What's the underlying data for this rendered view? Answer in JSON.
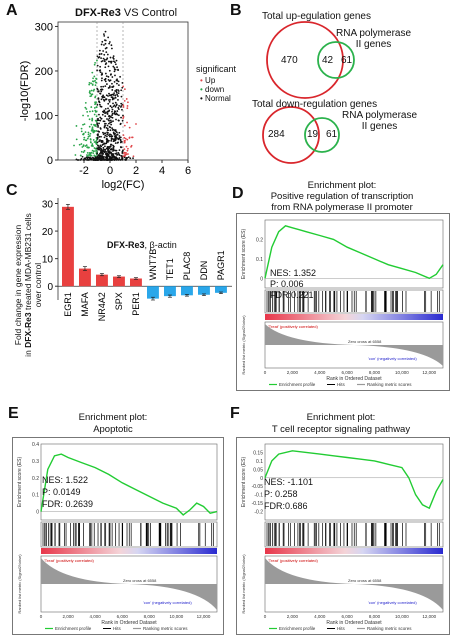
{
  "panel_letters": [
    "A",
    "B",
    "C",
    "D",
    "E",
    "F"
  ],
  "panel_a": {
    "title_bold": "DFX-Re3",
    "title_rest": " VS Control",
    "ylabel": "-log10(FDR)",
    "xlabel": "log2(FC)",
    "legend_title": "significant",
    "legend_items": [
      {
        "label": "Up",
        "color": "#e0464a"
      },
      {
        "label": "down",
        "color": "#29a44a"
      },
      {
        "label": "Normal",
        "color": "#111111"
      }
    ]
  },
  "panel_b": {
    "up_title": "Total up-egulation genes",
    "up_rna_label_1": "RNA polymerase",
    "up_rna_label_2": "II genes",
    "up_left": "470",
    "up_mid": "42",
    "up_right": "61",
    "down_title": "Total down-regulation genes",
    "down_rna_label_1": "RNA polymerase",
    "down_rna_label_2": "II genes",
    "down_left": "284",
    "down_mid": "19",
    "down_right": "61"
  },
  "panel_c": {
    "ylabel_1": "Fold change in gene expression",
    "ylabel_2_bold": "DFX-Re3",
    "ylabel_2_pre": "in ",
    "ylabel_2_post": " treated MDA-MB231 cells",
    "ylabel_3": "over control",
    "annot_bold": "DFX-Re3",
    "annot_rest": ", β-actin",
    "up_color": "#e8403f",
    "down_color": "#2aa7ea"
  },
  "gsea_common": {
    "ylabel_es": "Enrichment score (ES)",
    "ylabel_rank": "Ranked list metric (Signal2Noise)",
    "xlabel": "Rank in Ordered Dataset",
    "pos_label": "'Treat' (positively correlated)",
    "neg_label": "'con' (negatively correlated)",
    "zero_cross": "Zero cross at 6558",
    "legend_profile": "Enrichment profile",
    "legend_hits": "Hits",
    "legend_ranking": "Ranking metric scores"
  },
  "panel_d": {
    "heading": "Enrichment plot:",
    "title_1": "Positive regulation of transcription",
    "title_2": "from RNA polymerase II promoter",
    "nes": "NES: 1.352",
    "p": "P: 0.006",
    "fdr": "FDR:0.221"
  },
  "panel_e": {
    "heading": "Enrichment plot:",
    "title_1": "Apoptotic",
    "nes": "NES: 1.522",
    "p": "P: 0.0149",
    "fdr": "FDR: 0.2639"
  },
  "panel_f": {
    "heading": "Enrichment plot:",
    "title_1": "T cell receptor signaling pathway",
    "nes": "NES: -1.101",
    "p": "P: 0.258",
    "fdr": "FDR:0.686"
  },
  "chart_data": [
    {
      "type": "scatter",
      "title": "DFX-Re3 VS Control",
      "xlabel": "log2(FC)",
      "ylabel": "-log10(FDR)",
      "xlim": [
        -4,
        6
      ],
      "ylim": [
        0,
        310
      ],
      "xticks": [
        -2,
        0,
        2,
        4,
        6
      ],
      "yticks": [
        0,
        100,
        200,
        300
      ],
      "thresholds_x": [
        -1,
        1
      ],
      "series": [
        {
          "name": "Up",
          "color": "#e0464a"
        },
        {
          "name": "down",
          "color": "#29a44a"
        },
        {
          "name": "Normal",
          "color": "#111111"
        }
      ],
      "shape": {
        "x_center": -0.3,
        "x_spread": 2.0,
        "y_max": 300
      }
    },
    {
      "type": "bar",
      "title": "",
      "annotation": "DFX-Re3, β-actin",
      "ylabel": "Fold change in gene expression in DFX-Re3 treated MDA-MB231 cells over control",
      "ylim": [
        -5,
        32
      ],
      "yticks": [
        0,
        10,
        20,
        30
      ],
      "categories": [
        "EGR1",
        "MAFA",
        "NR4A2",
        "SPX",
        "PER1",
        "WNT7B",
        "TET1",
        "PLAC8",
        "DDN",
        "PAGR1"
      ],
      "values": [
        28.8,
        6.4,
        4.2,
        3.5,
        2.8,
        -4.5,
        -3.6,
        -3.3,
        -3.1,
        -2.4
      ],
      "errors": [
        0.9,
        0.7,
        0.4,
        0.3,
        0.3,
        0.5,
        0.4,
        0.3,
        0.3,
        0.3
      ]
    },
    {
      "type": "line",
      "title": "Positive regulation of transcription from RNA polymerase II promoter",
      "xlabel": "Rank in Ordered Dataset",
      "ylabel": "Enrichment score (ES)",
      "xlim": [
        0,
        13000
      ],
      "ylim": [
        -0.05,
        0.3
      ],
      "yticks": [
        0.0,
        0.1,
        0.2
      ],
      "xticks": [
        0,
        2000,
        4000,
        6000,
        8000,
        10000,
        12000
      ],
      "x": [
        0,
        500,
        1000,
        1500,
        2000,
        2500,
        3000,
        4000,
        5000,
        6000,
        7000,
        8000,
        9000,
        10000,
        11000,
        12000,
        12500,
        13000
      ],
      "y": [
        0.0,
        0.16,
        0.24,
        0.27,
        0.26,
        0.25,
        0.24,
        0.22,
        0.2,
        0.16,
        0.13,
        0.1,
        0.07,
        0.05,
        0.03,
        0.0,
        0.02,
        0.07
      ]
    },
    {
      "type": "line",
      "title": "Apoptotic",
      "xlabel": "Rank in Ordered Dataset",
      "ylabel": "Enrichment score (ES)",
      "xlim": [
        0,
        13000
      ],
      "ylim": [
        -0.05,
        0.4
      ],
      "yticks": [
        0.0,
        0.1,
        0.2,
        0.3,
        0.4
      ],
      "xticks": [
        0,
        2000,
        4000,
        6000,
        8000,
        10000,
        12000
      ],
      "x": [
        0,
        500,
        1000,
        1500,
        2000,
        3000,
        4000,
        5000,
        6000,
        7000,
        8000,
        9000,
        10000,
        10500,
        11000,
        11500,
        12000,
        12500,
        13000
      ],
      "y": [
        0.0,
        0.25,
        0.33,
        0.34,
        0.32,
        0.29,
        0.26,
        0.22,
        0.17,
        0.13,
        0.09,
        0.05,
        0.02,
        -0.02,
        0.01,
        0.05,
        0.03,
        -0.01,
        0.0
      ]
    },
    {
      "type": "line",
      "title": "T cell receptor signaling pathway",
      "xlabel": "Rank in Ordered Dataset",
      "ylabel": "Enrichment score (ES)",
      "xlim": [
        0,
        13000
      ],
      "ylim": [
        -0.25,
        0.2
      ],
      "yticks": [
        -0.2,
        -0.15,
        -0.1,
        -0.05,
        0.0,
        0.05,
        0.1,
        0.15
      ],
      "xticks": [
        0,
        2000,
        4000,
        6000,
        8000,
        10000,
        12000
      ],
      "x": [
        0,
        500,
        1000,
        2000,
        3000,
        4000,
        5000,
        6000,
        7000,
        8000,
        9000,
        10000,
        10500,
        11000,
        11500,
        12000,
        12500,
        13000
      ],
      "y": [
        0.0,
        0.1,
        0.14,
        0.16,
        0.15,
        0.14,
        0.13,
        0.12,
        0.11,
        0.1,
        0.08,
        0.06,
        0.0,
        -0.1,
        -0.16,
        -0.18,
        -0.08,
        -0.01
      ]
    }
  ]
}
